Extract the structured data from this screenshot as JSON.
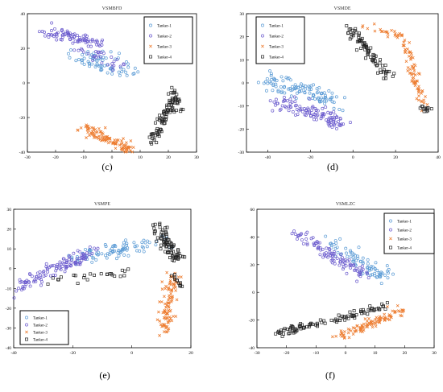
{
  "chart_data": [
    {
      "type": "scatter",
      "panel": "(c)",
      "title": "VSMBFD",
      "xlim": [
        -30,
        30
      ],
      "ylim": [
        -40,
        40
      ],
      "xticks": [
        -30,
        -20,
        -10,
        0,
        10,
        20,
        30
      ],
      "yticks": [
        -40,
        -20,
        0,
        20,
        40
      ],
      "grid": false,
      "legend_position": "top-right",
      "series": [
        {
          "name": "Tanker-1",
          "marker": "circle-open",
          "color": "#5b9bd5",
          "clusters": [
            {
              "from": [
                -12,
                16
              ],
              "to": [
                6,
                7
              ],
              "n": 70,
              "spread": [
                4,
                5
              ]
            }
          ]
        },
        {
          "name": "Tanker-2",
          "marker": "circle-open",
          "color": "#6a5acd",
          "clusters": [
            {
              "from": [
                -24,
                30
              ],
              "to": [
                -5,
                23
              ],
              "n": 80,
              "spread": [
                3,
                3
              ]
            },
            {
              "from": [
                -10,
                20
              ],
              "to": [
                4,
                10
              ],
              "n": 30,
              "spread": [
                3,
                3
              ]
            }
          ]
        },
        {
          "name": "Tanker-3",
          "marker": "x",
          "color": "#ed7d31",
          "clusters": [
            {
              "from": [
                -10,
                -26
              ],
              "to": [
                8,
                -40
              ],
              "n": 110,
              "spread": [
                2,
                2.5
              ]
            }
          ]
        },
        {
          "name": "Tanker-4",
          "marker": "square-open",
          "color": "#222222",
          "clusters": [
            {
              "from": [
                14,
                -34
              ],
              "to": [
                22,
                -8
              ],
              "n": 75,
              "spread": [
                2,
                2
              ]
            },
            {
              "from": [
                21,
                -2
              ],
              "to": [
                25,
                -16
              ],
              "n": 20,
              "spread": [
                1.5,
                2
              ]
            }
          ]
        }
      ]
    },
    {
      "type": "scatter",
      "panel": "(d)",
      "title": "VSMDE",
      "xlim": [
        -50,
        40
      ],
      "ylim": [
        -30,
        30
      ],
      "xticks": [
        -40,
        -20,
        0,
        20,
        40
      ],
      "yticks": [
        -30,
        -20,
        -10,
        0,
        10,
        20,
        30
      ],
      "grid": false,
      "legend_position": "top-left",
      "series": [
        {
          "name": "Tanker-1",
          "marker": "circle-open",
          "color": "#5b9bd5",
          "clusters": [
            {
              "from": [
                -42,
                2
              ],
              "to": [
                -8,
                -8
              ],
              "n": 110,
              "spread": [
                4,
                3
              ]
            }
          ]
        },
        {
          "name": "Tanker-2",
          "marker": "circle-open",
          "color": "#6a5acd",
          "clusters": [
            {
              "from": [
                -36,
                -8
              ],
              "to": [
                -4,
                -18
              ],
              "n": 110,
              "spread": [
                5,
                3
              ]
            }
          ]
        },
        {
          "name": "Tanker-3",
          "marker": "x",
          "color": "#ed7d31",
          "clusters": [
            {
              "from": [
                5,
                24
              ],
              "to": [
                24,
                20
              ],
              "n": 25,
              "spread": [
                2,
                1.5
              ]
            },
            {
              "from": [
                24,
                18
              ],
              "to": [
                33,
                -10
              ],
              "n": 70,
              "spread": [
                2,
                2
              ]
            }
          ]
        },
        {
          "name": "Tanker-4",
          "marker": "square-open",
          "color": "#222222",
          "clusters": [
            {
              "from": [
                -3,
                24
              ],
              "to": [
                17,
                3
              ],
              "n": 80,
              "spread": [
                2,
                2
              ]
            },
            {
              "from": [
                31,
                -10
              ],
              "to": [
                37,
                -12
              ],
              "n": 12,
              "spread": [
                1,
                1
              ]
            }
          ]
        }
      ]
    },
    {
      "type": "scatter",
      "panel": "(e)",
      "title": "VSMPE",
      "xlim": [
        -40,
        20
      ],
      "ylim": [
        -40,
        30
      ],
      "xticks": [
        -40,
        -20,
        0,
        20
      ],
      "yticks": [
        -40,
        -30,
        -20,
        -10,
        0,
        10,
        20,
        30
      ],
      "grid": false,
      "legend_position": "bottom-left",
      "series": [
        {
          "name": "Tanker-1",
          "marker": "circle-open",
          "color": "#5b9bd5",
          "clusters": [
            {
              "from": [
                -20,
                5
              ],
              "to": [
                12,
                14
              ],
              "n": 90,
              "spread": [
                3,
                3
              ]
            }
          ]
        },
        {
          "name": "Tanker-2",
          "marker": "circle-open",
          "color": "#6a5acd",
          "clusters": [
            {
              "from": [
                -40,
                -10
              ],
              "to": [
                -12,
                10
              ],
              "n": 120,
              "spread": [
                3,
                3
              ]
            }
          ]
        },
        {
          "name": "Tanker-3",
          "marker": "x",
          "color": "#ed7d31",
          "clusters": [
            {
              "from": [
                14,
                -4
              ],
              "to": [
                11,
                -32
              ],
              "n": 100,
              "spread": [
                2,
                2.5
              ]
            }
          ]
        },
        {
          "name": "Tanker-4",
          "marker": "square-open",
          "color": "#222222",
          "clusters": [
            {
              "from": [
                8,
                22
              ],
              "to": [
                16,
                4
              ],
              "n": 80,
              "spread": [
                2,
                2
              ]
            },
            {
              "from": [
                -30,
                -7
              ],
              "to": [
                -3,
                -2
              ],
              "n": 25,
              "spread": [
                3,
                2
              ]
            },
            {
              "from": [
                14,
                -2
              ],
              "to": [
                17,
                -10
              ],
              "n": 12,
              "spread": [
                1,
                1
              ]
            }
          ]
        }
      ]
    },
    {
      "type": "scatter",
      "panel": "(f)",
      "title": "VSMLZC",
      "xlim": [
        -30,
        30
      ],
      "ylim": [
        -40,
        60
      ],
      "xticks": [
        -30,
        -20,
        -10,
        0,
        10,
        20,
        30
      ],
      "yticks": [
        -40,
        -20,
        0,
        20,
        40,
        60
      ],
      "grid": false,
      "legend_position": "top-right",
      "series": [
        {
          "name": "Tanker-1",
          "marker": "circle-open",
          "color": "#5b9bd5",
          "clusters": [
            {
              "from": [
                -6,
                38
              ],
              "to": [
                14,
                10
              ],
              "n": 80,
              "spread": [
                3,
                4
              ]
            }
          ]
        },
        {
          "name": "Tanker-2",
          "marker": "circle-open",
          "color": "#6a5acd",
          "clusters": [
            {
              "from": [
                -16,
                42
              ],
              "to": [
                6,
                12
              ],
              "n": 100,
              "spread": [
                3,
                4
              ]
            }
          ]
        },
        {
          "name": "Tanker-3",
          "marker": "x",
          "color": "#ed7d31",
          "clusters": [
            {
              "from": [
                -2,
                -32
              ],
              "to": [
                20,
                -12
              ],
              "n": 100,
              "spread": [
                2,
                3
              ]
            }
          ]
        },
        {
          "name": "Tanker-4",
          "marker": "square-open",
          "color": "#222222",
          "clusters": [
            {
              "from": [
                -24,
                -30
              ],
              "to": [
                14,
                -10
              ],
              "n": 100,
              "spread": [
                2,
                2
              ]
            }
          ]
        }
      ]
    }
  ]
}
